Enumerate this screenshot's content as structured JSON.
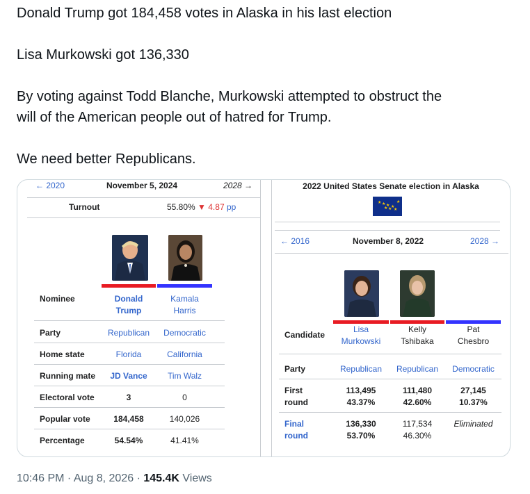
{
  "tweet": {
    "line1": "Donald Trump got 184,458 votes in Alaska in his last election",
    "line2": "Lisa Murkowski got 136,330",
    "line3a": "By voting against Todd Blanche, Murkowski attempted to obstruct the",
    "line3b": "will of the American people out of hatred for Trump.",
    "line4": "We need better Republicans."
  },
  "left": {
    "prev": "← 2020",
    "title": "November 5, 2024",
    "next": "2028 →",
    "turnout_label": "Turnout",
    "turnout_value": "55.80%",
    "turnout_change": "▼ 4.87",
    "turnout_unit": "pp",
    "rows": {
      "nominee": {
        "label": "Nominee",
        "a1": "Donald",
        "a2": "Trump",
        "b1": "Kamala",
        "b2": "Harris"
      },
      "party": {
        "label": "Party",
        "a": "Republican",
        "b": "Democratic"
      },
      "home": {
        "label": "Home state",
        "a": "Florida",
        "b": "California"
      },
      "mate": {
        "label": "Running mate",
        "a": "JD Vance",
        "b": "Tim Walz"
      },
      "ev": {
        "label": "Electoral vote",
        "a": "3",
        "b": "0"
      },
      "pv": {
        "label": "Popular vote",
        "a": "184,458",
        "b": "140,026"
      },
      "pct": {
        "label": "Percentage",
        "a": "54.54%",
        "b": "41.41%"
      }
    }
  },
  "right": {
    "header": "2022 United States Senate election in Alaska",
    "prev": "← 2016",
    "title": "November 8, 2022",
    "next": "2028 →",
    "rows": {
      "cand": {
        "label": "Candidate",
        "a1": "Lisa",
        "a2": "Murkowski",
        "b1": "Kelly",
        "b2": "Tshibaka",
        "c1": "Pat",
        "c2": "Chesbro"
      },
      "party": {
        "label": "Party",
        "a": "Republican",
        "b": "Republican",
        "c": "Democratic"
      },
      "first": {
        "label1": "First",
        "label2": "round",
        "a1": "113,495",
        "a2": "43.37%",
        "b1": "111,480",
        "b2": "42.60%",
        "c1": "27,145",
        "c2": "10.37%"
      },
      "final": {
        "label1": "Final",
        "label2": "round",
        "a1": "136,330",
        "a2": "53.70%",
        "b1": "117,534",
        "b2": "46.30%",
        "c": "Eliminated"
      }
    }
  },
  "meta": {
    "time": "10:46 PM · Aug 8, 2026 · ",
    "views_count": "145.4K",
    "views_label": " Views"
  },
  "colors": {
    "republican": "#e81b23",
    "democratic": "#3333ff",
    "link": "#3366cc"
  }
}
